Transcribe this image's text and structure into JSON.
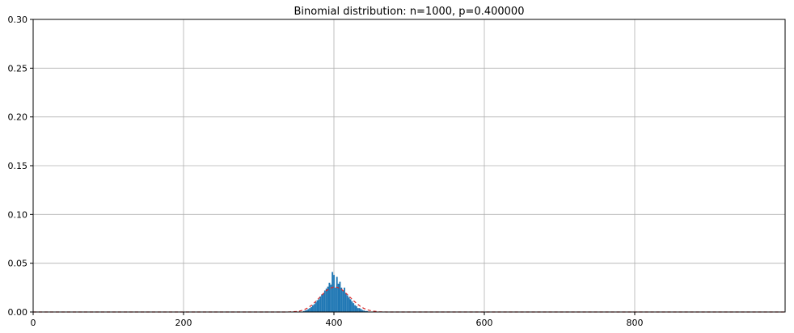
{
  "chart_data": {
    "type": "bar",
    "title": "Binomial distribution: n=1000, p=0.400000",
    "xlabel": "",
    "ylabel": "",
    "xlim": [
      0,
      1000
    ],
    "ylim": [
      0,
      0.3
    ],
    "xticks": [
      0,
      200,
      400,
      600,
      800
    ],
    "yticks": [
      0.0,
      0.05,
      0.1,
      0.15,
      0.2,
      0.25,
      0.3
    ],
    "grid": true,
    "distribution": {
      "n": 1000,
      "p": 0.4
    },
    "series": [
      {
        "type": "bar",
        "color": "#1f77b4",
        "x": [
          360,
          362,
          364,
          366,
          368,
          370,
          372,
          374,
          376,
          378,
          380,
          382,
          384,
          386,
          388,
          390,
          392,
          394,
          396,
          398,
          400,
          402,
          404,
          406,
          408,
          410,
          412,
          414,
          416,
          418,
          420,
          422,
          424,
          426,
          428,
          430,
          432,
          434,
          436,
          438,
          440,
          442,
          444,
          446
        ],
        "values": [
          0.001,
          0.0015,
          0.002,
          0.003,
          0.004,
          0.005,
          0.007,
          0.008,
          0.01,
          0.012,
          0.013,
          0.016,
          0.018,
          0.019,
          0.022,
          0.024,
          0.026,
          0.03,
          0.028,
          0.041,
          0.038,
          0.025,
          0.036,
          0.029,
          0.031,
          0.025,
          0.022,
          0.025,
          0.019,
          0.017,
          0.015,
          0.013,
          0.011,
          0.009,
          0.007,
          0.006,
          0.004,
          0.004,
          0.003,
          0.002,
          0.0015,
          0.001,
          0.001,
          0.0005
        ]
      },
      {
        "type": "line",
        "style": "dashed",
        "color": "#d62728",
        "x": [
          0,
          330,
          340,
          350,
          355,
          360,
          365,
          370,
          375,
          380,
          385,
          390,
          395,
          400,
          405,
          410,
          415,
          420,
          425,
          430,
          435,
          440,
          445,
          450,
          460,
          470,
          1000
        ],
        "values": [
          0,
          0,
          4e-05,
          0.0005,
          0.0011,
          0.0022,
          0.0041,
          0.0067,
          0.0102,
          0.0141,
          0.0182,
          0.0219,
          0.0244,
          0.0257,
          0.0252,
          0.0232,
          0.02,
          0.0162,
          0.0124,
          0.0089,
          0.0059,
          0.0036,
          0.0021,
          0.0011,
          0.0002,
          2e-05,
          0
        ]
      }
    ]
  }
}
